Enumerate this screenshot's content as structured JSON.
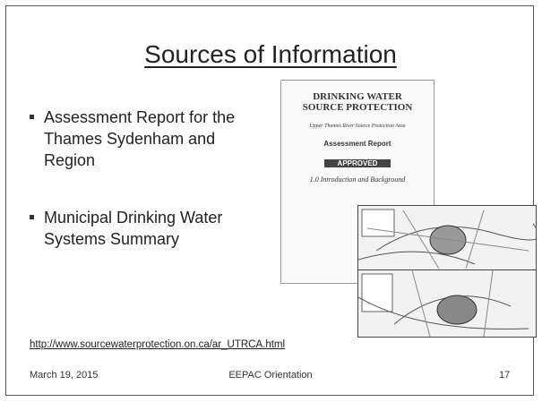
{
  "slide": {
    "title": "Sources of Information",
    "bullets": [
      "Assessment Report for the Thames Sydenham and Region",
      "Municipal Drinking Water Systems Summary"
    ],
    "cover": {
      "line1": "DRINKING WATER",
      "line2": "SOURCE PROTECTION",
      "area": "Upper Thames River Source Protection Area",
      "report": "Assessment Report",
      "stamp": "APPROVED",
      "section": "1.0 Introduction and Background"
    },
    "link": "http://www.sourcewaterprotection.on.ca/ar_UTRCA.html",
    "footer": {
      "date": "March 19, 2015",
      "center": "EEPAC Orientation",
      "page": "17"
    }
  }
}
